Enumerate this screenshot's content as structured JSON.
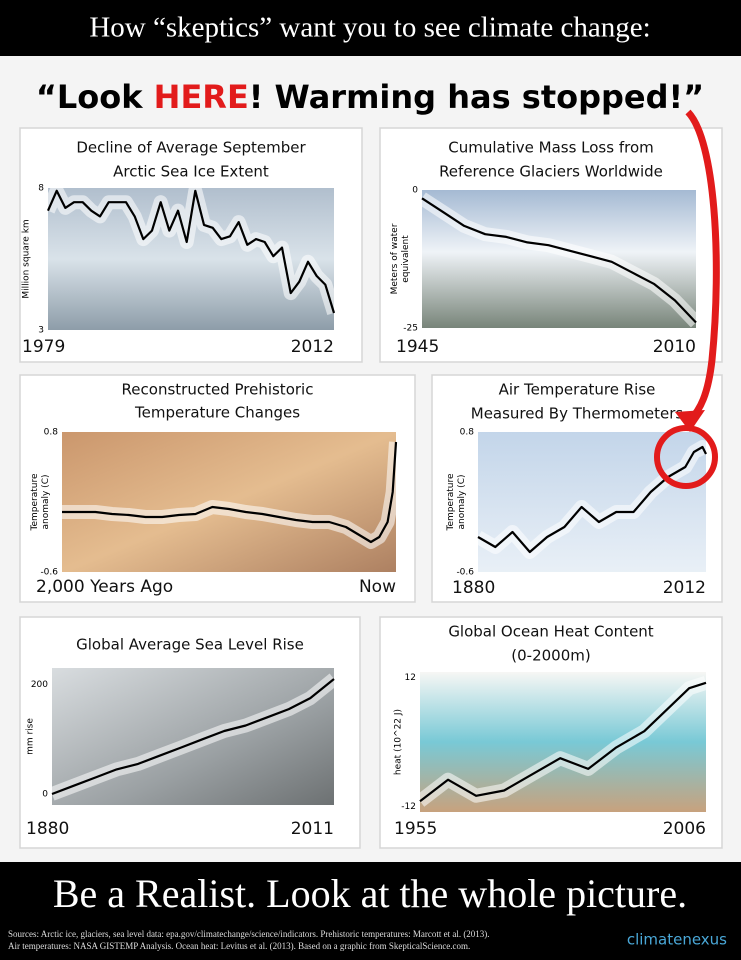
{
  "header": "How “skeptics” want you to see climate change:",
  "quote": {
    "start": "“Look ",
    "emphasis": "HERE",
    "end": "! Warming has stopped!”"
  },
  "chart_data": [
    {
      "type": "line",
      "title": [
        "Decline of Average September",
        "Arctic Sea Ice Extent"
      ],
      "y_label": [
        "Million square km"
      ],
      "color": "#000000",
      "x": [
        1979,
        1980,
        1981,
        1982,
        1983,
        1984,
        1985,
        1986,
        1987,
        1988,
        1989,
        1990,
        1991,
        1992,
        1993,
        1994,
        1995,
        1996,
        1997,
        1998,
        1999,
        2000,
        2001,
        2002,
        2003,
        2004,
        2005,
        2006,
        2007,
        2008,
        2009,
        2010,
        2011,
        2012
      ],
      "values": [
        7.2,
        7.9,
        7.3,
        7.5,
        7.5,
        7.2,
        7.0,
        7.5,
        7.5,
        7.5,
        7.0,
        6.2,
        6.5,
        7.5,
        6.5,
        7.2,
        6.1,
        7.9,
        6.7,
        6.6,
        6.2,
        6.3,
        6.8,
        6.0,
        6.2,
        6.1,
        5.6,
        5.9,
        4.3,
        4.7,
        5.4,
        4.9,
        4.6,
        3.6
      ],
      "xlim": [
        1979,
        2012
      ],
      "xticks": [
        1979,
        2012
      ],
      "ylim": [
        3,
        8
      ],
      "yticks": [
        8,
        3
      ]
    },
    {
      "type": "line",
      "title": [
        "Cumulative Mass Loss from",
        "Reference Glaciers Worldwide"
      ],
      "y_label": [
        "Meters of water",
        "equivalent"
      ],
      "color": "#000000",
      "x": [
        1945,
        1950,
        1955,
        1960,
        1965,
        1970,
        1975,
        1980,
        1985,
        1990,
        1995,
        2000,
        2005,
        2010
      ],
      "values": [
        -1.5,
        -4,
        -6.5,
        -8,
        -8.5,
        -9.5,
        -10,
        -11,
        -12,
        -13,
        -15,
        -17,
        -20,
        -24
      ],
      "xlim": [
        1945,
        2010
      ],
      "xticks": [
        1945,
        2010
      ],
      "ylim": [
        -25,
        0
      ],
      "yticks": [
        0,
        -25
      ]
    },
    {
      "type": "line",
      "title": [
        "Reconstructed Prehistoric",
        "Temperature Changes"
      ],
      "y_label": [
        "Temperature",
        "anomaly (C)"
      ],
      "color": "#000000",
      "x": [
        -2000,
        -1900,
        -1800,
        -1700,
        -1600,
        -1500,
        -1400,
        -1300,
        -1200,
        -1100,
        -1000,
        -900,
        -800,
        -700,
        -600,
        -500,
        -400,
        -300,
        -200,
        -150,
        -100,
        -50,
        -20,
        0
      ],
      "values": [
        0.0,
        0.0,
        0.0,
        -0.02,
        -0.03,
        -0.05,
        -0.05,
        -0.03,
        -0.02,
        0.05,
        0.03,
        0.0,
        -0.02,
        -0.05,
        -0.08,
        -0.1,
        -0.1,
        -0.15,
        -0.25,
        -0.3,
        -0.25,
        -0.1,
        0.2,
        0.7
      ],
      "xlim": [
        -2000,
        0
      ],
      "xticks": [
        {
          "value": -2000,
          "label": "2,000 Years Ago"
        },
        {
          "value": 0,
          "label": "Now"
        }
      ],
      "ylim": [
        -0.6,
        0.8
      ],
      "yticks": [
        0.8,
        -0.6
      ]
    },
    {
      "type": "line",
      "title": [
        "Air Temperature Rise",
        "Measured By Thermometers"
      ],
      "y_label": [
        "Temperature",
        "anomaly (C)"
      ],
      "color": "#000000",
      "x": [
        1880,
        1890,
        1900,
        1910,
        1920,
        1930,
        1940,
        1950,
        1960,
        1970,
        1980,
        1990,
        2000,
        2005,
        2010,
        2012
      ],
      "values": [
        -0.25,
        -0.35,
        -0.2,
        -0.4,
        -0.25,
        -0.15,
        0.05,
        -0.1,
        0.0,
        0.0,
        0.2,
        0.35,
        0.45,
        0.6,
        0.65,
        0.58
      ],
      "xlim": [
        1880,
        2012
      ],
      "xticks": [
        1880,
        2012
      ],
      "ylim": [
        -0.6,
        0.8
      ],
      "yticks": [
        0.8,
        -0.6
      ]
    },
    {
      "type": "line",
      "title": [
        "Global Average Sea Level Rise"
      ],
      "y_label": [
        "mm rise"
      ],
      "color": "#000000",
      "x": [
        1880,
        1890,
        1900,
        1910,
        1920,
        1930,
        1940,
        1950,
        1960,
        1970,
        1980,
        1990,
        2000,
        2011
      ],
      "values": [
        0,
        15,
        30,
        45,
        55,
        70,
        85,
        100,
        115,
        125,
        140,
        155,
        175,
        210
      ],
      "xlim": [
        1880,
        2011
      ],
      "xticks": [
        1880,
        2011
      ],
      "ylim": [
        -20,
        230
      ],
      "yticks": [
        200,
        0
      ]
    },
    {
      "type": "line",
      "title": [
        "Global Ocean Heat Content",
        "(0-2000m)"
      ],
      "y_label": [
        "heat (10^22 J)"
      ],
      "color": "#000000",
      "x": [
        1955,
        1960,
        1965,
        1970,
        1975,
        1980,
        1985,
        1990,
        1995,
        2000,
        2003,
        2006
      ],
      "values": [
        -11,
        -7,
        -10,
        -9,
        -6,
        -3,
        -5,
        -1,
        2,
        7,
        10,
        11
      ],
      "xlim": [
        1955,
        2006
      ],
      "xticks": [
        1955,
        2006
      ],
      "ylim": [
        -13,
        13
      ],
      "yticks": [
        12,
        -12
      ]
    }
  ],
  "footer": {
    "tagline": "Be a Realist. Look at the whole picture.",
    "sources": [
      "Sources: Arctic ice, glaciers, sea level data: epa.gov/climatechange/science/indicators. Prehistoric temperatures: Marcott et al. (2013).",
      "Air temperatures: NASA GISTEMP Analysis. Ocean heat: Levitus et al. (2013). Based on a graphic from SkepticalScience.com."
    ],
    "logo": "climatenexus"
  }
}
